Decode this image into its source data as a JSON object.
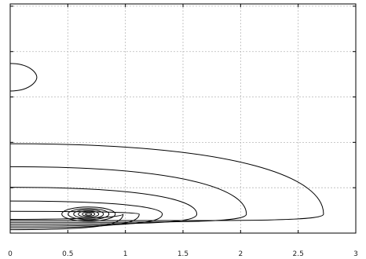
{
  "chart_data": {
    "type": "contour",
    "title": "",
    "xlabel": "",
    "ylabel": "",
    "xlim": [
      0,
      3
    ],
    "x_ticks": [
      "0",
      "0.5",
      "1",
      "1.5",
      "2",
      "2.5",
      "3"
    ],
    "y_tick_count": 5,
    "grid": true,
    "grid_style": "dashed",
    "line_color": "#000000",
    "grid_color": "#b8b8b8",
    "peak": {
      "x": 0.68
    },
    "contour_levels": [
      {
        "x_min": 0.0,
        "x_max": 0.42,
        "y_lo": 0.01,
        "y_hi": 0.39
      },
      {
        "x_min": 0.0,
        "x_max": 0.42,
        "y_lo": 0.03,
        "y_hi": 0.29
      },
      {
        "x_min": 0.0,
        "x_max": 0.42,
        "y_lo": 0.045,
        "y_hi": 0.2
      },
      {
        "x_min": 0.0,
        "x_max": 0.42,
        "y_lo": 0.06,
        "y_hi": 0.14
      },
      {
        "x_min": 0.0,
        "x_max": 0.42,
        "y_lo": 0.075,
        "y_hi": 0.095
      },
      {
        "x_min": 0.52,
        "x_max": 0.86,
        "y_lo": 0.078,
        "y_hi": 0.092
      }
    ],
    "side_lobe": {
      "x_max": 0.42,
      "y_top": 0.74,
      "y_bottom": 0.62
    }
  }
}
